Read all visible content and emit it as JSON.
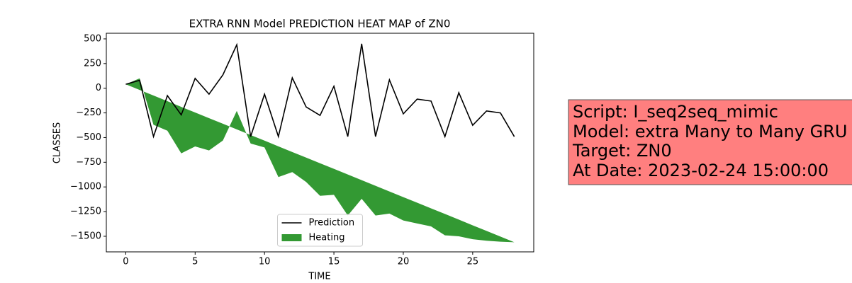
{
  "chart_data": {
    "type": "line",
    "title": "EXTRA RNN Model PREDICTION HEAT MAP of ZN0",
    "xlabel": "TIME",
    "ylabel": "CLASSES",
    "x": [
      0,
      1,
      2,
      3,
      4,
      5,
      6,
      7,
      8,
      9,
      10,
      11,
      12,
      13,
      14,
      15,
      16,
      17,
      18,
      19,
      20,
      21,
      22,
      23,
      24,
      25,
      26,
      27,
      28
    ],
    "xlim": [
      -1.4,
      29.4
    ],
    "xticks": [
      0,
      5,
      10,
      15,
      20,
      25
    ],
    "ylim": [
      -1658,
      557
    ],
    "yticks": [
      500,
      250,
      0,
      {
        "value": -250,
        "label": "−250"
      },
      {
        "value": -500,
        "label": "−500"
      },
      {
        "value": -750,
        "label": "−750"
      },
      {
        "value": -1000,
        "label": "−1000"
      },
      {
        "value": -1250,
        "label": "−1250"
      },
      {
        "value": -1500,
        "label": "−1500"
      }
    ],
    "legend": "lower center",
    "series": [
      {
        "name": "Prediction",
        "type": "line",
        "color": "#000000",
        "values": [
          40,
          80,
          -490,
          -75,
          -270,
          100,
          -60,
          135,
          440,
          -490,
          -60,
          -490,
          105,
          -190,
          -275,
          20,
          -490,
          450,
          -490,
          85,
          -260,
          -110,
          -130,
          -490,
          -45,
          -375,
          -230,
          -250,
          -490
        ]
      },
      {
        "name": "Heating",
        "type": "area",
        "color": "#008000",
        "values": [
          40,
          100,
          -370,
          -430,
          -660,
          -590,
          -630,
          -530,
          -230,
          -560,
          -600,
          -900,
          -850,
          -950,
          -1090,
          -1080,
          -1290,
          -1120,
          -1290,
          -1270,
          -1340,
          -1370,
          -1400,
          -1490,
          -1500,
          -1530,
          -1545,
          -1555,
          -1560
        ],
        "values2": [
          40,
          -17,
          -74,
          -131,
          -189,
          -246,
          -303,
          -360,
          -417,
          -474,
          -531,
          -589,
          -646,
          -703,
          -760,
          -817,
          -874,
          -931,
          -989,
          -1046,
          -1103,
          -1160,
          -1217,
          -1274,
          -1331,
          -1389,
          -1446,
          -1503,
          -1560
        ]
      }
    ]
  },
  "annotation": {
    "lines": [
      "Script: I_seq2seq_mimic",
      "Model: extra Many to Many GRU",
      "Target: ZN0",
      "At Date: 2023-02-24 15:00:00"
    ]
  }
}
